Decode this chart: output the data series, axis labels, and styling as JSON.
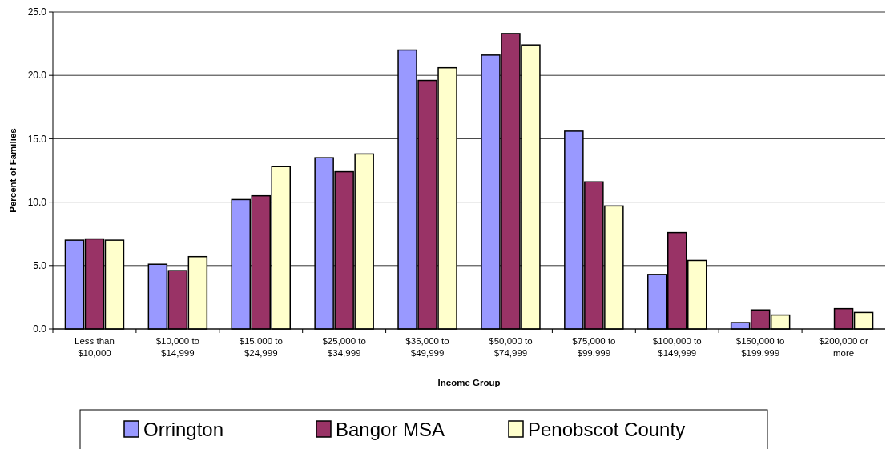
{
  "chart_data": {
    "type": "bar",
    "xlabel": "Income Group",
    "ylabel": "Percent of Families",
    "categories": [
      "Less than $10,000",
      "$10,000 to $14,999",
      "$15,000 to $24,999",
      "$25,000 to $34,999",
      "$35,000 to $49,999",
      "$50,000 to $74,999",
      "$75,000 to $99,999",
      "$100,000 to $149,999",
      "$150,000 to $199,999",
      "$200,000 or more"
    ],
    "series": [
      {
        "name": "Orrington",
        "color": "#9999ff",
        "values": [
          7.0,
          5.1,
          10.2,
          13.5,
          22.0,
          21.6,
          15.6,
          4.3,
          0.5,
          0
        ]
      },
      {
        "name": "Bangor MSA",
        "color": "#993366",
        "values": [
          7.1,
          4.6,
          10.5,
          12.4,
          19.6,
          23.3,
          11.6,
          7.6,
          1.5,
          1.6
        ]
      },
      {
        "name": "Penobscot County",
        "color": "#ffffcc",
        "values": [
          7.0,
          5.7,
          12.8,
          13.8,
          20.6,
          22.4,
          9.7,
          5.4,
          1.1,
          1.3
        ]
      }
    ],
    "ylim": [
      0,
      25
    ],
    "yticks": [
      {
        "value": 0,
        "label": "0.0"
      },
      {
        "value": 5,
        "label": "5.0"
      },
      {
        "value": 10,
        "label": "10.0"
      },
      {
        "value": 15,
        "label": "15.0"
      },
      {
        "value": 20,
        "label": "20.0"
      },
      {
        "value": 25,
        "label": "25.0"
      }
    ],
    "grid": "y",
    "legend": "bottom"
  }
}
